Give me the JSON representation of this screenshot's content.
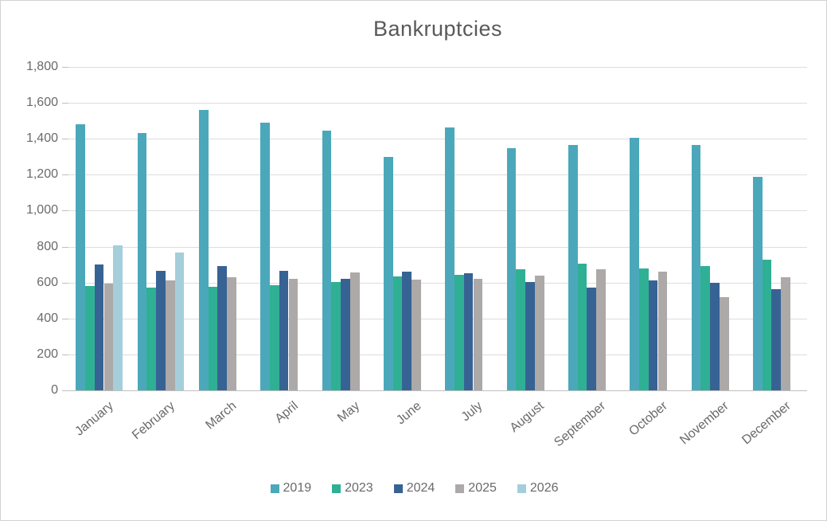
{
  "chart_data": {
    "type": "bar",
    "title": "Bankruptcies",
    "categories": [
      "January",
      "February",
      "March",
      "April",
      "May",
      "June",
      "July",
      "August",
      "September",
      "October",
      "November",
      "December"
    ],
    "series": [
      {
        "name": "2019",
        "color": "#4BA8BA",
        "values": [
          1480,
          1430,
          1560,
          1490,
          1445,
          1300,
          1465,
          1350,
          1365,
          1405,
          1365,
          1190
        ]
      },
      {
        "name": "2023",
        "color": "#2FB094",
        "values": [
          580,
          570,
          575,
          585,
          605,
          635,
          645,
          675,
          705,
          680,
          690,
          725
        ]
      },
      {
        "name": "2024",
        "color": "#376394",
        "values": [
          700,
          665,
          690,
          665,
          620,
          660,
          650,
          605,
          570,
          610,
          600,
          565
        ]
      },
      {
        "name": "2025",
        "color": "#ACA9A8",
        "values": [
          595,
          610,
          630,
          620,
          655,
          615,
          620,
          640,
          675,
          660,
          520,
          630
        ]
      },
      {
        "name": "2026",
        "color": "#A5CEDB",
        "values": [
          805,
          765,
          null,
          null,
          null,
          null,
          null,
          null,
          null,
          null,
          null,
          null
        ]
      }
    ],
    "ylim": [
      0,
      1800
    ],
    "ytick_step": 200,
    "ytick_labels": [
      "0",
      "200",
      "400",
      "600",
      "800",
      "1,000",
      "1,200",
      "1,400",
      "1,600",
      "1,800"
    ],
    "xlabel": "",
    "ylabel": "",
    "grid": true,
    "legend_position": "bottom"
  },
  "style": {
    "background": "#FFFFFF",
    "border_color": "#D2D2D2",
    "grid_color": "#DDDDDD",
    "axis_color": "#BFBFBF",
    "title_color": "#595959",
    "label_color": "#6A6A6A"
  }
}
